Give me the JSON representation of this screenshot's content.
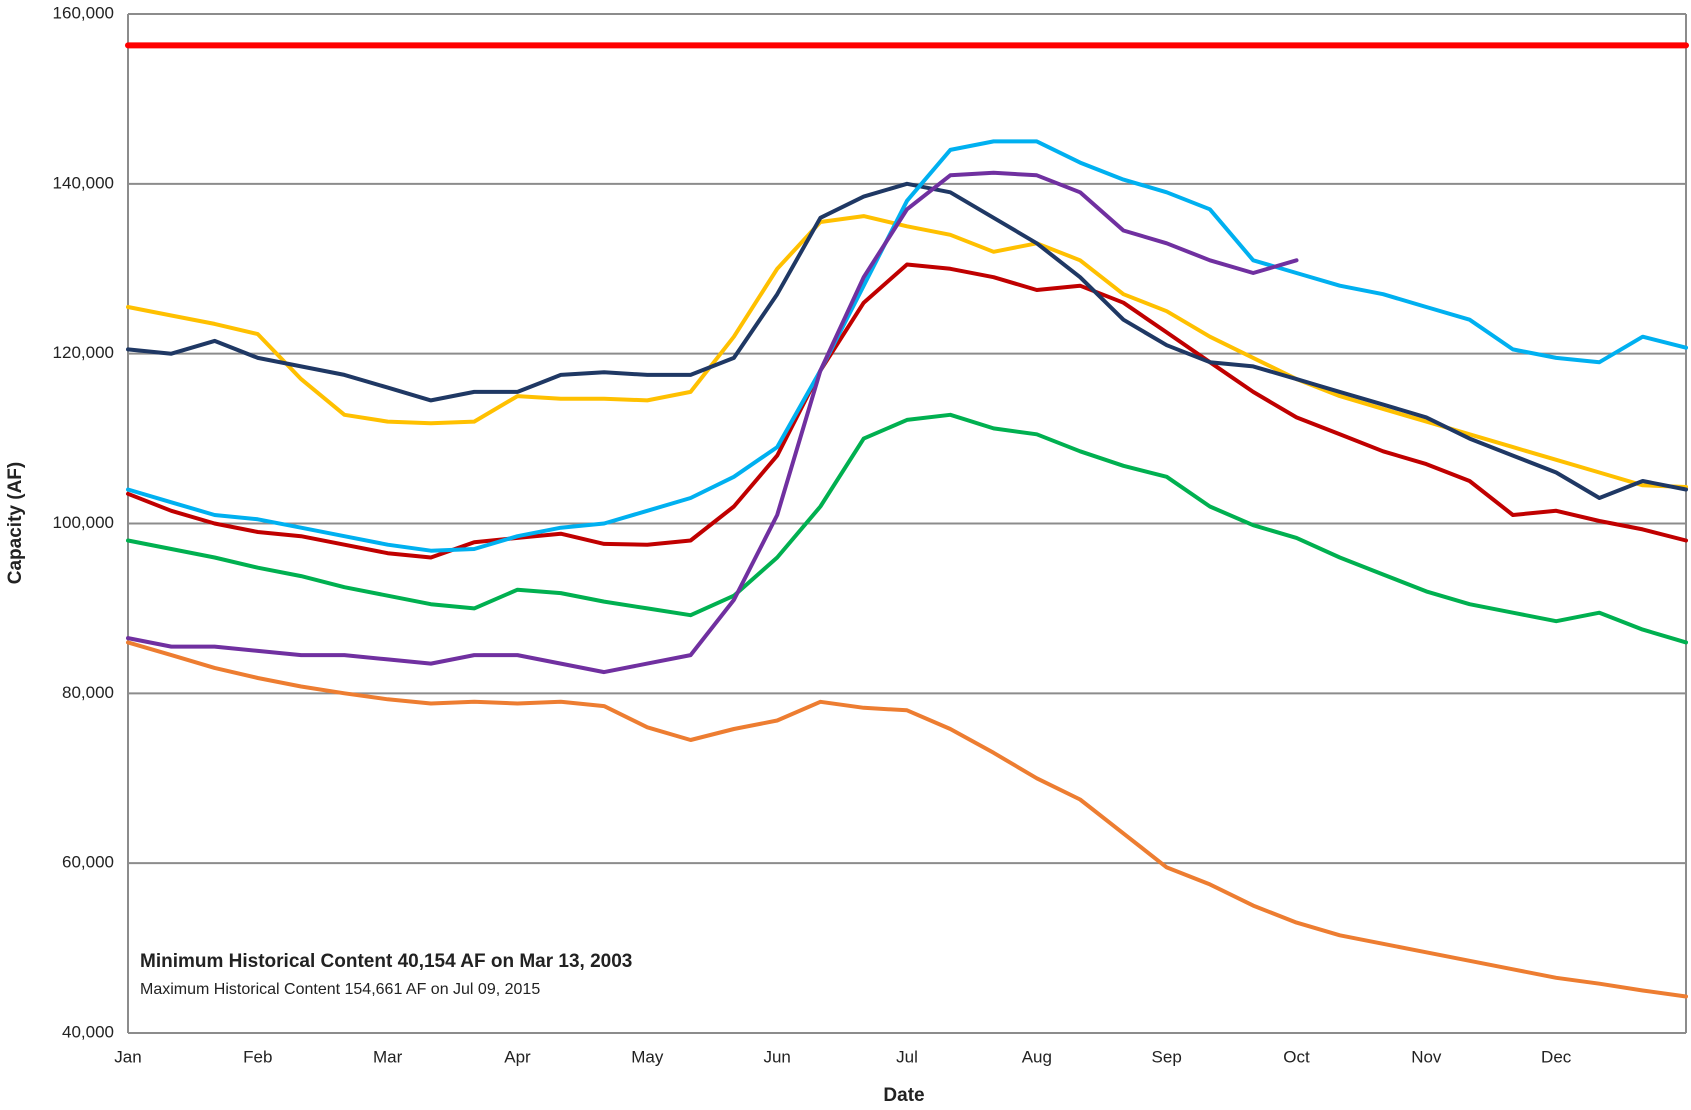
{
  "chart_data": {
    "type": "line",
    "x_label": "Date",
    "y_label": "Capacity (AF)",
    "annotations": [
      "Minimum Historical Content 40,154 AF on Mar 13, 2003",
      "Maximum Historical Content 154,661 AF on Jul 09, 2015"
    ],
    "categories": [
      "Jan",
      null,
      null,
      "Feb",
      null,
      null,
      "Mar",
      null,
      null,
      "Apr",
      null,
      null,
      "May",
      null,
      null,
      "Jun",
      null,
      null,
      "Jul",
      null,
      null,
      "Aug",
      null,
      null,
      "Sep",
      null,
      null,
      "Oct",
      null,
      null,
      "Nov",
      null,
      null,
      "Dec",
      null,
      null,
      null
    ],
    "ylim": [
      40000,
      160000
    ],
    "yticks": [
      {
        "value": 40000,
        "label": "40,000"
      },
      {
        "value": 60000,
        "label": "60,000"
      },
      {
        "value": 80000,
        "label": "80,000"
      },
      {
        "value": 100000,
        "label": "100,000"
      },
      {
        "value": 120000,
        "label": "120,000"
      },
      {
        "value": 140000,
        "label": "140,000"
      },
      {
        "value": 160000,
        "label": "160,000"
      }
    ],
    "grid": true,
    "series": [
      {
        "color": "#ff0000",
        "values": [
          156300,
          156300,
          156300,
          156300,
          156300,
          156300,
          156300,
          156300,
          156300,
          156300,
          156300,
          156300,
          156300,
          156300,
          156300,
          156300,
          156300,
          156300,
          156300,
          156300,
          156300,
          156300,
          156300,
          156300,
          156300,
          156300,
          156300,
          156300,
          156300,
          156300,
          156300,
          156300,
          156300,
          156300,
          156300,
          156300,
          156300
        ]
      },
      {
        "color": "#ed7d31",
        "values": [
          86000,
          84500,
          83000,
          81800,
          80800,
          80000,
          79300,
          78800,
          79000,
          78800,
          79000,
          78500,
          76000,
          74500,
          75800,
          76800,
          79000,
          78300,
          78000,
          75800,
          73000,
          70000,
          67500,
          63500,
          59500,
          57500,
          55000,
          53000,
          51500,
          50500,
          49500,
          48500,
          47500,
          46500,
          45800,
          45000,
          44300
        ]
      },
      {
        "color": "#00b050",
        "values": [
          98000,
          97000,
          96000,
          94800,
          93800,
          92500,
          91500,
          90500,
          90000,
          92200,
          91800,
          90800,
          90000,
          89200,
          91500,
          96000,
          102000,
          110000,
          112200,
          112800,
          111200,
          110500,
          108500,
          106800,
          105500,
          102000,
          99800,
          98300,
          96000,
          94000,
          92000,
          90500,
          89500,
          88500,
          89500,
          87500,
          86000
        ]
      },
      {
        "color": "#c00000",
        "values": [
          103500,
          101500,
          100000,
          99000,
          98500,
          97500,
          96500,
          96000,
          97800,
          98300,
          98800,
          97600,
          97500,
          98000,
          102000,
          108000,
          118000,
          126000,
          130500,
          130000,
          129000,
          127500,
          128000,
          126000,
          122500,
          119000,
          115500,
          112500,
          110500,
          108500,
          107000,
          105000,
          101000,
          101500,
          100300,
          99300,
          98000
        ]
      },
      {
        "color": "#ffc000",
        "values": [
          125500,
          124500,
          123500,
          122300,
          117000,
          112800,
          112000,
          111800,
          112000,
          115000,
          114700,
          114700,
          114500,
          115500,
          122000,
          130000,
          135500,
          136200,
          135000,
          134000,
          132000,
          133000,
          131000,
          127000,
          125000,
          122000,
          119500,
          117000,
          115000,
          113500,
          112000,
          110500,
          109000,
          107500,
          106000,
          104500,
          104300
        ]
      },
      {
        "color": "#1f3864",
        "values": [
          120500,
          120000,
          121500,
          119500,
          118500,
          117500,
          116000,
          114500,
          115500,
          115500,
          117500,
          117800,
          117500,
          117500,
          119500,
          127000,
          136000,
          138500,
          140000,
          139000,
          136000,
          133000,
          129000,
          124000,
          121000,
          119000,
          118500,
          117000,
          115500,
          114000,
          112500,
          110000,
          108000,
          106000,
          103000,
          105000,
          104000
        ]
      },
      {
        "color": "#00b0f0",
        "values": [
          104000,
          102500,
          101000,
          100500,
          99500,
          98500,
          97500,
          96800,
          97000,
          98500,
          99500,
          100000,
          101500,
          103000,
          105500,
          109000,
          118000,
          128000,
          138000,
          144000,
          145000,
          145000,
          142500,
          140500,
          139000,
          137000,
          131000,
          129500,
          128000,
          127000,
          125500,
          124000,
          120500,
          119500,
          119000,
          122000,
          120700
        ]
      },
      {
        "color": "#7030a0",
        "values": [
          86500,
          85500,
          85500,
          85000,
          84500,
          84500,
          84000,
          83500,
          84500,
          84500,
          83500,
          82500,
          83500,
          84500,
          91000,
          101000,
          118000,
          129000,
          137000,
          141000,
          141300,
          141000,
          139000,
          134500,
          133000,
          131000,
          129500,
          131000,
          null,
          null,
          null,
          null,
          null,
          null,
          null,
          null,
          null
        ]
      }
    ]
  }
}
